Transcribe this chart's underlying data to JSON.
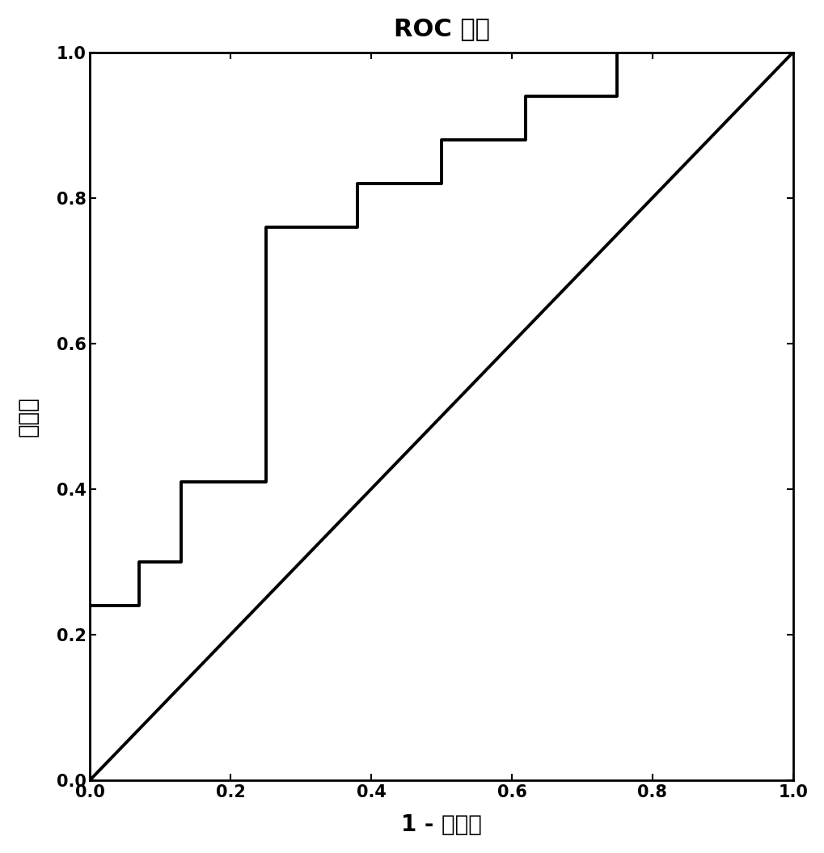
{
  "title": "ROC 曲线",
  "xlabel": "1 - 特异性",
  "ylabel": "敏感度",
  "xlim": [
    0.0,
    1.0
  ],
  "ylim": [
    0.0,
    1.0
  ],
  "xticks": [
    0.0,
    0.2,
    0.4,
    0.6,
    0.8,
    1.0
  ],
  "yticks": [
    0.0,
    0.2,
    0.4,
    0.6,
    0.8,
    1.0
  ],
  "background_color": "#ffffff",
  "line_color": "#000000",
  "diag_color": "#000000",
  "title_fontsize": 22,
  "label_fontsize": 20,
  "tick_fontsize": 15,
  "line_width": 2.8,
  "roc_x": [
    0.0,
    0.0,
    0.07,
    0.07,
    0.13,
    0.13,
    0.25,
    0.25,
    0.38,
    0.38,
    0.5,
    0.5,
    0.62,
    0.62,
    0.75,
    0.75,
    1.0
  ],
  "roc_y": [
    0.0,
    0.24,
    0.24,
    0.3,
    0.3,
    0.41,
    0.41,
    0.76,
    0.76,
    0.82,
    0.82,
    0.88,
    0.88,
    0.94,
    0.94,
    1.0,
    1.0
  ],
  "ylabel_rotation": 90,
  "ylabel_labelpad": 15,
  "spine_linewidth": 2.0
}
